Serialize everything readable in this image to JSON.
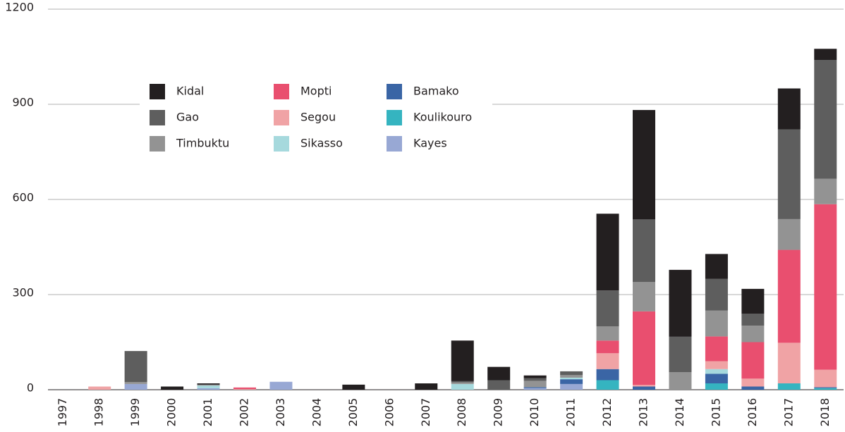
{
  "chart_data": {
    "type": "stacked_bar",
    "categories": [
      "1997",
      "1998",
      "1999",
      "2000",
      "2001",
      "2002",
      "2003",
      "2004",
      "2005",
      "2006",
      "2007",
      "2008",
      "2009",
      "2010",
      "2011",
      "2012",
      "2013",
      "2014",
      "2015",
      "2016",
      "2017",
      "2018"
    ],
    "series": [
      {
        "name": "Kayes",
        "color": "#98a8d4",
        "values": [
          0,
          0,
          18,
          0,
          5,
          0,
          25,
          0,
          0,
          0,
          0,
          0,
          0,
          5,
          18,
          0,
          0,
          0,
          0,
          0,
          0,
          0
        ]
      },
      {
        "name": "Koulikouro",
        "color": "#35b4c0",
        "values": [
          0,
          0,
          0,
          0,
          0,
          0,
          0,
          0,
          0,
          0,
          0,
          0,
          0,
          0,
          0,
          30,
          0,
          0,
          20,
          0,
          20,
          5
        ]
      },
      {
        "name": "Bamako",
        "color": "#3a65a5",
        "values": [
          0,
          0,
          0,
          0,
          0,
          0,
          0,
          0,
          0,
          0,
          0,
          0,
          0,
          3,
          15,
          35,
          10,
          0,
          30,
          10,
          0,
          3
        ]
      },
      {
        "name": "Sikasso",
        "color": "#a6d9dd",
        "values": [
          0,
          0,
          0,
          0,
          8,
          0,
          0,
          0,
          0,
          0,
          0,
          18,
          0,
          0,
          5,
          0,
          0,
          0,
          15,
          0,
          0,
          0
        ]
      },
      {
        "name": "Segou",
        "color": "#f0a3a5",
        "values": [
          0,
          10,
          0,
          0,
          0,
          2,
          0,
          0,
          0,
          0,
          0,
          0,
          0,
          0,
          0,
          50,
          5,
          0,
          25,
          25,
          128,
          55
        ]
      },
      {
        "name": "Mopti",
        "color": "#e94f6f",
        "values": [
          0,
          0,
          0,
          0,
          0,
          5,
          0,
          0,
          0,
          0,
          0,
          0,
          0,
          0,
          0,
          40,
          232,
          0,
          78,
          115,
          293,
          522
        ]
      },
      {
        "name": "Timbuktu",
        "color": "#939393",
        "values": [
          0,
          0,
          6,
          0,
          3,
          0,
          0,
          0,
          0,
          0,
          0,
          5,
          0,
          20,
          8,
          45,
          93,
          55,
          82,
          52,
          97,
          80
        ]
      },
      {
        "name": "Gao",
        "color": "#5e5e5e",
        "values": [
          0,
          0,
          98,
          0,
          0,
          0,
          0,
          0,
          0,
          0,
          0,
          4,
          30,
          8,
          12,
          113,
          197,
          112,
          100,
          38,
          283,
          375
        ]
      },
      {
        "name": "Kidal",
        "color": "#231f20",
        "values": [
          1,
          0,
          0,
          10,
          4,
          0,
          0,
          0,
          16,
          0,
          20,
          128,
          42,
          9,
          0,
          242,
          345,
          211,
          78,
          78,
          129,
          35
        ]
      }
    ],
    "legend_order": [
      "Kidal",
      "Gao",
      "Timbuktu",
      "Mopti",
      "Segou",
      "Sikasso",
      "Bamako",
      "Koulikouro",
      "Kayes"
    ],
    "ylim": [
      0,
      1200
    ],
    "yticks": [
      0,
      300,
      600,
      900,
      1200
    ],
    "grid": true
  }
}
